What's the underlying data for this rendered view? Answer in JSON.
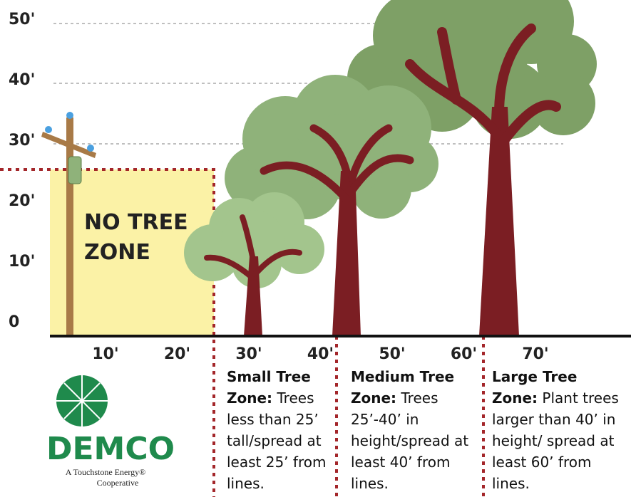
{
  "y_axis_labels": [
    "50'",
    "40'",
    "30'",
    "20'",
    "10'",
    "0"
  ],
  "x_axis_labels": [
    "10'",
    "20'",
    "30'",
    "40'",
    "50'",
    "60'",
    "70'"
  ],
  "no_tree_zone": [
    "NO TREE",
    "ZONE"
  ],
  "zones": [
    {
      "heading": "Small Tree Zone:",
      "body": "Trees less than 25’ tall/spread at least 25’ from lines."
    },
    {
      "heading": "Medium Tree Zone:",
      "body": "Trees 25’-40’ in height/spread at least 40’ from lines."
    },
    {
      "heading": "Large Tree Zone:",
      "body": "Plant trees larger than 40’ in height/ spread at least 60’ from lines."
    }
  ],
  "logo": {
    "name": "DEMCO",
    "tagline_1": "A Touchstone Energy®",
    "tagline_2": "Cooperative"
  }
}
